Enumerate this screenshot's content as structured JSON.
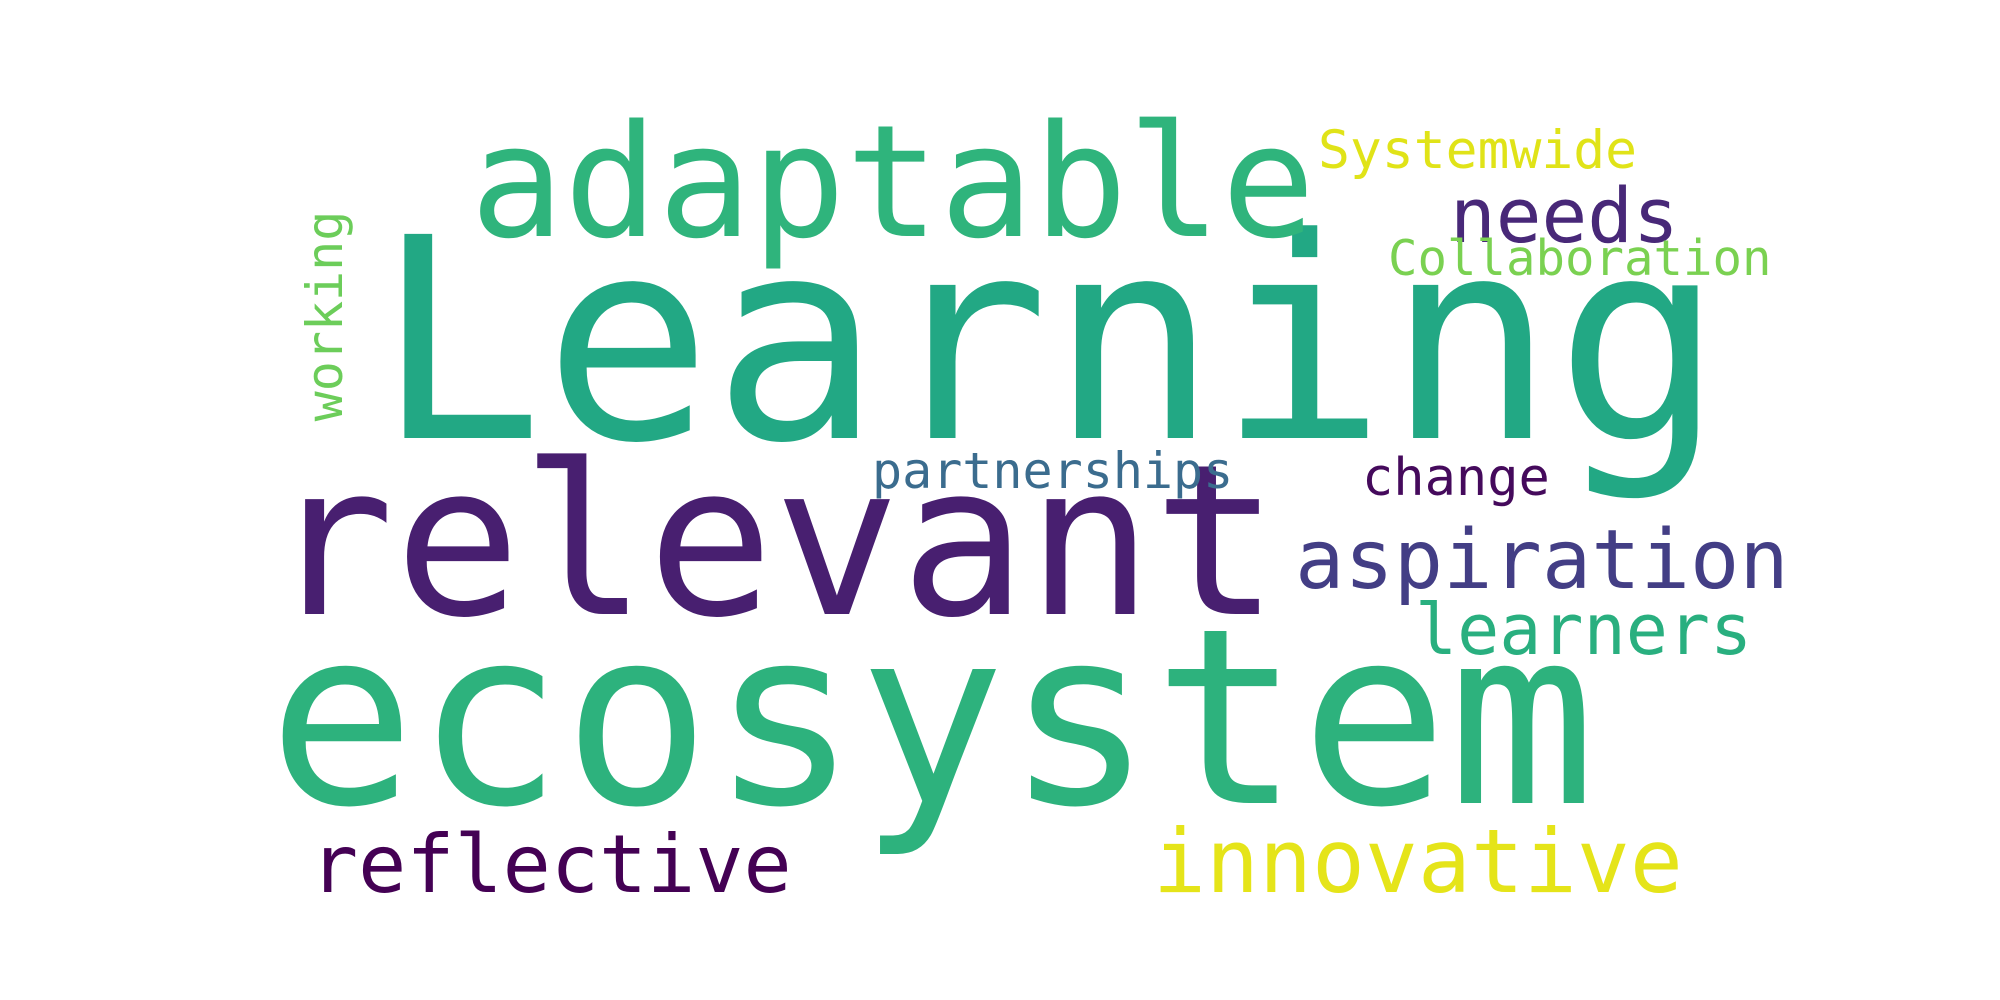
{
  "words": {
    "learning": {
      "text": "Learning",
      "color": "#22a884"
    },
    "ecosystem": {
      "text": "ecosystem",
      "color": "#2db27d"
    },
    "relevant": {
      "text": "relevant",
      "color": "#481f70"
    },
    "adaptable": {
      "text": "adaptable",
      "color": "#2fb47c"
    },
    "aspiration": {
      "text": "aspiration",
      "color": "#433e85"
    },
    "innovative": {
      "text": "innovative",
      "color": "#e5e419"
    },
    "reflective": {
      "text": "reflective",
      "color": "#440154"
    },
    "needs": {
      "text": "needs",
      "color": "#482878"
    },
    "learners": {
      "text": "learners",
      "color": "#29af7f"
    },
    "systemwide": {
      "text": "Systemwide",
      "color": "#e0e318"
    },
    "collaboration": {
      "text": "Collaboration",
      "color": "#7ad151"
    },
    "partnerships": {
      "text": "partnerships",
      "color": "#3b6c8e"
    },
    "change": {
      "text": "change",
      "color": "#450a5c"
    },
    "working": {
      "text": "working",
      "color": "#6ccd5a"
    }
  }
}
